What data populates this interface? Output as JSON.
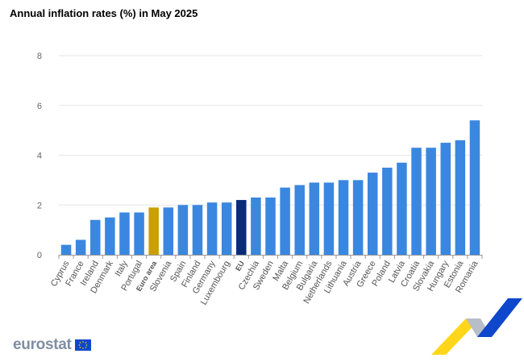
{
  "chart_data": {
    "type": "bar",
    "title": "Annual inflation rates (%) in May 2025",
    "categories": [
      "Cyprus",
      "France",
      "Ireland",
      "Denmark",
      "Italy",
      "Portugal",
      "Euro area",
      "Slovenia",
      "Spain",
      "Finland",
      "Germany",
      "Luxembourg",
      "EU",
      "Czechia",
      "Sweden",
      "Malta",
      "Belgium",
      "Bulgaria",
      "Netherlands",
      "Lithuania",
      "Austria",
      "Greece",
      "Poland",
      "Latvia",
      "Croatia",
      "Slovakia",
      "Hungary",
      "Estonia",
      "Romania"
    ],
    "values": [
      0.4,
      0.6,
      1.4,
      1.5,
      1.7,
      1.7,
      1.9,
      1.9,
      2.0,
      2.0,
      2.1,
      2.1,
      2.2,
      2.3,
      2.3,
      2.7,
      2.8,
      2.9,
      2.9,
      3.0,
      3.0,
      3.3,
      3.5,
      3.7,
      4.3,
      4.3,
      4.5,
      4.6,
      5.4
    ],
    "highlight": {
      "Euro area": "#c9a000",
      "EU": "#0b2a78"
    },
    "bar_color": "#3a87e0",
    "yticks": [
      "0",
      "2",
      "4",
      "6",
      "8"
    ],
    "ylim": [
      0,
      8
    ],
    "grid": true,
    "xlabel": "",
    "ylabel": ""
  },
  "branding": {
    "logo_text": "eurostat"
  }
}
